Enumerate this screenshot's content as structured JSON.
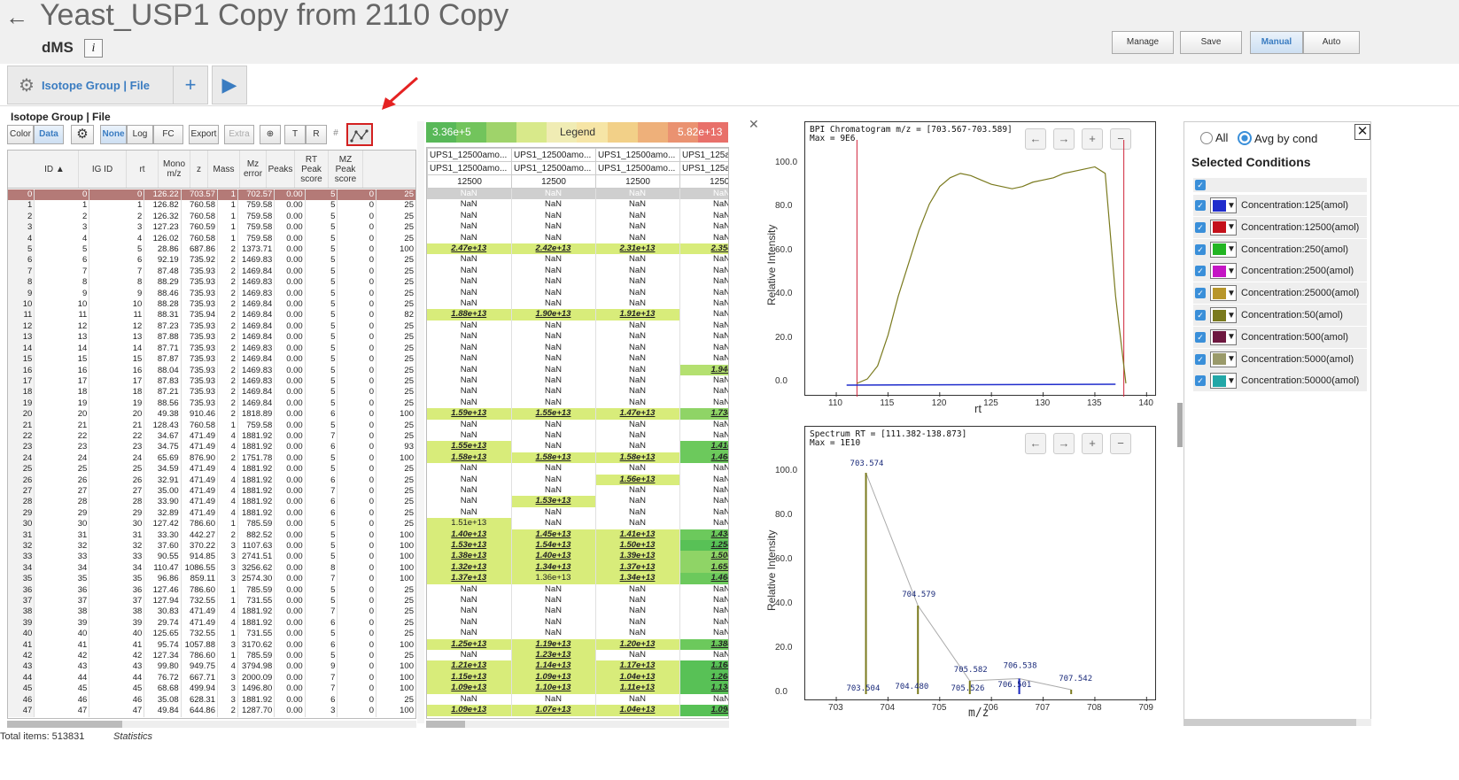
{
  "header": {
    "back_icon": "arrow-left",
    "title": "Yeast_USP1 Copy from 2110 Copy",
    "subtitle": "dMS",
    "info_label": "i",
    "buttons": [
      "Manage",
      "Save",
      "Manual",
      "Auto"
    ]
  },
  "tabs": {
    "active_label": "Isotope Group | File",
    "add_label": "+",
    "run_label": "▶"
  },
  "panel_title": "Isotope Group | File",
  "toolbar": {
    "color": "Color",
    "data": "Data",
    "none": "None",
    "log": "Log",
    "fc": "FC",
    "export": "Export",
    "extra": "Extra",
    "t": "T",
    "r": "R"
  },
  "grid": {
    "headers": [
      "ID",
      "IG ID",
      "rt",
      "Mono m/z",
      "z",
      "Mass",
      "Mz error",
      "Peaks",
      "RT Peak score",
      "MZ Peak score"
    ],
    "rows": [
      [
        "0",
        "0",
        "126.22",
        "703.57",
        "1",
        "702.57",
        "0.00",
        "5",
        "0",
        "25"
      ],
      [
        "1",
        "1",
        "126.82",
        "760.58",
        "1",
        "759.58",
        "0.00",
        "5",
        "0",
        "25"
      ],
      [
        "2",
        "2",
        "126.32",
        "760.58",
        "1",
        "759.58",
        "0.00",
        "5",
        "0",
        "25"
      ],
      [
        "3",
        "3",
        "127.23",
        "760.59",
        "1",
        "759.58",
        "0.00",
        "5",
        "0",
        "25"
      ],
      [
        "4",
        "4",
        "126.02",
        "760.58",
        "1",
        "759.58",
        "0.00",
        "5",
        "0",
        "25"
      ],
      [
        "5",
        "5",
        "28.86",
        "687.86",
        "2",
        "1373.71",
        "0.00",
        "5",
        "0",
        "100"
      ],
      [
        "6",
        "6",
        "92.19",
        "735.92",
        "2",
        "1469.83",
        "0.00",
        "5",
        "0",
        "25"
      ],
      [
        "7",
        "7",
        "87.48",
        "735.93",
        "2",
        "1469.84",
        "0.00",
        "5",
        "0",
        "25"
      ],
      [
        "8",
        "8",
        "88.29",
        "735.93",
        "2",
        "1469.83",
        "0.00",
        "5",
        "0",
        "25"
      ],
      [
        "9",
        "9",
        "88.46",
        "735.93",
        "2",
        "1469.83",
        "0.00",
        "5",
        "0",
        "25"
      ],
      [
        "10",
        "10",
        "88.28",
        "735.93",
        "2",
        "1469.84",
        "0.00",
        "5",
        "0",
        "25"
      ],
      [
        "11",
        "11",
        "88.31",
        "735.94",
        "2",
        "1469.84",
        "0.00",
        "5",
        "0",
        "82"
      ],
      [
        "12",
        "12",
        "87.23",
        "735.93",
        "2",
        "1469.84",
        "0.00",
        "5",
        "0",
        "25"
      ],
      [
        "13",
        "13",
        "87.88",
        "735.93",
        "2",
        "1469.84",
        "0.00",
        "5",
        "0",
        "25"
      ],
      [
        "14",
        "14",
        "87.71",
        "735.93",
        "2",
        "1469.83",
        "0.00",
        "5",
        "0",
        "25"
      ],
      [
        "15",
        "15",
        "87.87",
        "735.93",
        "2",
        "1469.84",
        "0.00",
        "5",
        "0",
        "25"
      ],
      [
        "16",
        "16",
        "88.04",
        "735.93",
        "2",
        "1469.83",
        "0.00",
        "5",
        "0",
        "25"
      ],
      [
        "17",
        "17",
        "87.83",
        "735.93",
        "2",
        "1469.83",
        "0.00",
        "5",
        "0",
        "25"
      ],
      [
        "18",
        "18",
        "87.21",
        "735.93",
        "2",
        "1469.84",
        "0.00",
        "5",
        "0",
        "25"
      ],
      [
        "19",
        "19",
        "88.56",
        "735.93",
        "2",
        "1469.84",
        "0.00",
        "5",
        "0",
        "25"
      ],
      [
        "20",
        "20",
        "49.38",
        "910.46",
        "2",
        "1818.89",
        "0.00",
        "6",
        "0",
        "100"
      ],
      [
        "21",
        "21",
        "128.43",
        "760.58",
        "1",
        "759.58",
        "0.00",
        "5",
        "0",
        "25"
      ],
      [
        "22",
        "22",
        "34.67",
        "471.49",
        "4",
        "1881.92",
        "0.00",
        "7",
        "0",
        "25"
      ],
      [
        "23",
        "23",
        "34.75",
        "471.49",
        "4",
        "1881.92",
        "0.00",
        "6",
        "0",
        "93"
      ],
      [
        "24",
        "24",
        "65.69",
        "876.90",
        "2",
        "1751.78",
        "0.00",
        "5",
        "0",
        "100"
      ],
      [
        "25",
        "25",
        "34.59",
        "471.49",
        "4",
        "1881.92",
        "0.00",
        "5",
        "0",
        "25"
      ],
      [
        "26",
        "26",
        "32.91",
        "471.49",
        "4",
        "1881.92",
        "0.00",
        "6",
        "0",
        "25"
      ],
      [
        "27",
        "27",
        "35.00",
        "471.49",
        "4",
        "1881.92",
        "0.00",
        "7",
        "0",
        "25"
      ],
      [
        "28",
        "28",
        "33.90",
        "471.49",
        "4",
        "1881.92",
        "0.00",
        "6",
        "0",
        "25"
      ],
      [
        "29",
        "29",
        "32.89",
        "471.49",
        "4",
        "1881.92",
        "0.00",
        "6",
        "0",
        "25"
      ],
      [
        "30",
        "30",
        "127.42",
        "786.60",
        "1",
        "785.59",
        "0.00",
        "5",
        "0",
        "25"
      ],
      [
        "31",
        "31",
        "33.30",
        "442.27",
        "2",
        "882.52",
        "0.00",
        "5",
        "0",
        "100"
      ],
      [
        "32",
        "32",
        "37.60",
        "370.22",
        "3",
        "1107.63",
        "0.00",
        "5",
        "0",
        "100"
      ],
      [
        "33",
        "33",
        "90.55",
        "914.85",
        "3",
        "2741.51",
        "0.00",
        "5",
        "0",
        "100"
      ],
      [
        "34",
        "34",
        "110.47",
        "1086.55",
        "3",
        "3256.62",
        "0.00",
        "8",
        "0",
        "100"
      ],
      [
        "35",
        "35",
        "96.86",
        "859.11",
        "3",
        "2574.30",
        "0.00",
        "7",
        "0",
        "100"
      ],
      [
        "36",
        "36",
        "127.46",
        "786.60",
        "1",
        "785.59",
        "0.00",
        "5",
        "0",
        "25"
      ],
      [
        "37",
        "37",
        "127.94",
        "732.55",
        "1",
        "731.55",
        "0.00",
        "5",
        "0",
        "25"
      ],
      [
        "38",
        "38",
        "30.83",
        "471.49",
        "4",
        "1881.92",
        "0.00",
        "7",
        "0",
        "25"
      ],
      [
        "39",
        "39",
        "29.74",
        "471.49",
        "4",
        "1881.92",
        "0.00",
        "6",
        "0",
        "25"
      ],
      [
        "40",
        "40",
        "125.65",
        "732.55",
        "1",
        "731.55",
        "0.00",
        "5",
        "0",
        "25"
      ],
      [
        "41",
        "41",
        "95.74",
        "1057.88",
        "3",
        "3170.62",
        "0.00",
        "6",
        "0",
        "100"
      ],
      [
        "42",
        "42",
        "127.34",
        "786.60",
        "1",
        "785.59",
        "0.00",
        "5",
        "0",
        "25"
      ],
      [
        "43",
        "43",
        "99.80",
        "949.75",
        "4",
        "3794.98",
        "0.00",
        "9",
        "0",
        "100"
      ],
      [
        "44",
        "44",
        "76.72",
        "667.71",
        "3",
        "2000.09",
        "0.00",
        "7",
        "0",
        "100"
      ],
      [
        "45",
        "45",
        "68.68",
        "499.94",
        "3",
        "1496.80",
        "0.00",
        "7",
        "0",
        "100"
      ],
      [
        "46",
        "46",
        "35.08",
        "628.31",
        "3",
        "1881.92",
        "0.00",
        "6",
        "0",
        "25"
      ],
      [
        "47",
        "47",
        "49.84",
        "644.86",
        "2",
        "1287.70",
        "0.00",
        "3",
        "0",
        "100"
      ]
    ]
  },
  "legend": {
    "low": "3.36e+5",
    "mid": "Legend",
    "high": "5.82e+13",
    "colors": [
      "#58b858",
      "#72c45c",
      "#9fd36a",
      "#d8e98a",
      "#f0ecb4",
      "#f6e5a6",
      "#f2d088",
      "#eeb07a",
      "#ea9271",
      "#e8706a"
    ]
  },
  "heat": {
    "col_headers": [
      "UPS1_12500amo...",
      "UPS1_12500amo...",
      "UPS1_12500amo...",
      "UPS1_125a"
    ],
    "col_headers2": [
      "UPS1_12500amo...",
      "UPS1_12500amo...",
      "UPS1_12500amo...",
      "UPS1_125a"
    ],
    "col_nums": [
      "12500",
      "12500",
      "12500",
      "12500"
    ],
    "rows": [
      [
        "NaN",
        "NaN",
        "NaN",
        "NaN"
      ],
      [
        "NaN",
        "NaN",
        "NaN",
        "NaN"
      ],
      [
        "NaN",
        "NaN",
        "NaN",
        "NaN"
      ],
      [
        "NaN",
        "NaN",
        "NaN",
        "NaN"
      ],
      [
        "NaN",
        "NaN",
        "NaN",
        "NaN"
      ],
      [
        "2.47e+13",
        "2.42e+13",
        "2.31e+13",
        "2.35e"
      ],
      [
        "NaN",
        "NaN",
        "NaN",
        "NaN"
      ],
      [
        "NaN",
        "NaN",
        "NaN",
        "NaN"
      ],
      [
        "NaN",
        "NaN",
        "NaN",
        "NaN"
      ],
      [
        "NaN",
        "NaN",
        "NaN",
        "NaN"
      ],
      [
        "NaN",
        "NaN",
        "NaN",
        "NaN"
      ],
      [
        "1.88e+13",
        "1.90e+13",
        "1.91e+13",
        "NaN"
      ],
      [
        "NaN",
        "NaN",
        "NaN",
        "NaN"
      ],
      [
        "NaN",
        "NaN",
        "NaN",
        "NaN"
      ],
      [
        "NaN",
        "NaN",
        "NaN",
        "NaN"
      ],
      [
        "NaN",
        "NaN",
        "NaN",
        "NaN"
      ],
      [
        "NaN",
        "NaN",
        "NaN",
        "1.94e"
      ],
      [
        "NaN",
        "NaN",
        "NaN",
        "NaN"
      ],
      [
        "NaN",
        "NaN",
        "NaN",
        "NaN"
      ],
      [
        "NaN",
        "NaN",
        "NaN",
        "NaN"
      ],
      [
        "1.59e+13",
        "1.55e+13",
        "1.47e+13",
        "1.73e"
      ],
      [
        "NaN",
        "NaN",
        "NaN",
        "NaN"
      ],
      [
        "NaN",
        "NaN",
        "NaN",
        "NaN"
      ],
      [
        "1.55e+13",
        "NaN",
        "NaN",
        "1.41e"
      ],
      [
        "1.58e+13",
        "1.58e+13",
        "1.58e+13",
        "1.46e"
      ],
      [
        "NaN",
        "NaN",
        "NaN",
        "NaN"
      ],
      [
        "NaN",
        "NaN",
        "1.56e+13",
        "NaN"
      ],
      [
        "NaN",
        "NaN",
        "NaN",
        "NaN"
      ],
      [
        "NaN",
        "1.53e+13",
        "NaN",
        "NaN"
      ],
      [
        "NaN",
        "NaN",
        "NaN",
        "NaN"
      ],
      [
        "1.51e+13",
        "NaN",
        "NaN",
        "NaN"
      ],
      [
        "1.40e+13",
        "1.45e+13",
        "1.41e+13",
        "1.43e"
      ],
      [
        "1.53e+13",
        "1.54e+13",
        "1.50e+13",
        "1.25e"
      ],
      [
        "1.38e+13",
        "1.40e+13",
        "1.39e+13",
        "1.50e"
      ],
      [
        "1.32e+13",
        "1.34e+13",
        "1.37e+13",
        "1.65e"
      ],
      [
        "1.37e+13",
        "1.36e+13",
        "1.34e+13",
        "1.46e"
      ],
      [
        "NaN",
        "NaN",
        "NaN",
        "NaN"
      ],
      [
        "NaN",
        "NaN",
        "NaN",
        "NaN"
      ],
      [
        "NaN",
        "NaN",
        "NaN",
        "NaN"
      ],
      [
        "NaN",
        "NaN",
        "NaN",
        "NaN"
      ],
      [
        "NaN",
        "NaN",
        "NaN",
        "NaN"
      ],
      [
        "1.25e+13",
        "1.19e+13",
        "1.20e+13",
        "1.38e"
      ],
      [
        "NaN",
        "1.23e+13",
        "NaN",
        "NaN"
      ],
      [
        "1.21e+13",
        "1.14e+13",
        "1.17e+13",
        "1.16e"
      ],
      [
        "1.15e+13",
        "1.09e+13",
        "1.04e+13",
        "1.26e"
      ],
      [
        "1.09e+13",
        "1.10e+13",
        "1.11e+13",
        "1.13e"
      ],
      [
        "NaN",
        "NaN",
        "NaN",
        "NaN"
      ],
      [
        "1.09e+13",
        "1.07e+13",
        "1.04e+13",
        "1.09e"
      ]
    ]
  },
  "footer": {
    "total": "Total items: 513831",
    "stats": "Statistics"
  },
  "chrom": {
    "title1": "BPI Chromatogram m/z = [703.567-703.589]",
    "title2": "Max = 9E6",
    "ylabel": "Relative Intensity",
    "xlabel": "rt",
    "yticks": [
      "100.0",
      "80.0",
      "60.0",
      "40.0",
      "20.0",
      "0.0"
    ],
    "xticks": [
      "110",
      "115",
      "120",
      "125",
      "130",
      "135",
      "140"
    ]
  },
  "spec": {
    "title1": "Spectrum RT = [111.382-138.873]",
    "title2": "Max = 1E10",
    "ylabel": "Relative Intensity",
    "xlabel": "m/z",
    "yticks": [
      "100.0",
      "80.0",
      "60.0",
      "40.0",
      "20.0",
      "0.0"
    ],
    "xticks": [
      "703",
      "704",
      "705",
      "706",
      "707",
      "708",
      "709"
    ],
    "peak_labels": [
      "703.574",
      "704.579",
      "705.582",
      "706.538",
      "707.542",
      "703.504",
      "704.480",
      "705.526",
      "706.501"
    ]
  },
  "chart_data": [
    {
      "type": "line",
      "title": "BPI Chromatogram m/z = [703.567-703.589]",
      "xlabel": "rt",
      "ylabel": "Relative Intensity",
      "xlim": [
        107,
        141
      ],
      "ylim": [
        0,
        100
      ],
      "series": [
        {
          "x": [
            112,
            113,
            114,
            115,
            116,
            117,
            118,
            119,
            120,
            121,
            122,
            123,
            124,
            125,
            126,
            127,
            128,
            129,
            130,
            131,
            132,
            133,
            134,
            135,
            136,
            137,
            138
          ],
          "values": [
            0,
            2,
            8,
            22,
            40,
            55,
            70,
            82,
            90,
            94,
            96,
            95,
            93,
            91,
            90,
            89,
            90,
            92,
            93,
            94,
            96,
            97,
            98,
            99,
            96,
            40,
            0
          ]
        }
      ]
    },
    {
      "type": "bar",
      "title": "Spectrum RT = [111.382-138.873]",
      "xlabel": "m/z",
      "ylabel": "Relative Intensity",
      "xlim": [
        702.4,
        709.2
      ],
      "ylim": [
        0,
        100
      ],
      "series": [
        {
          "x": [
            703.574,
            704.579,
            705.582,
            706.538,
            707.542
          ],
          "values": [
            100,
            40,
            6,
            7,
            2
          ]
        }
      ]
    }
  ],
  "conditions": {
    "all_label": "All",
    "avg_label": "Avg by cond",
    "heading": "Selected Conditions",
    "items": [
      {
        "label": "Concentration:125(amol)",
        "color": "#1f2ccc"
      },
      {
        "label": "Concentration:12500(amol)",
        "color": "#c4101a"
      },
      {
        "label": "Concentration:250(amol)",
        "color": "#22b522"
      },
      {
        "label": "Concentration:2500(amol)",
        "color": "#c415c4"
      },
      {
        "label": "Concentration:25000(amol)",
        "color": "#b8962a"
      },
      {
        "label": "Concentration:50(amol)",
        "color": "#7a7a1e"
      },
      {
        "label": "Concentration:500(amol)",
        "color": "#6e1840"
      },
      {
        "label": "Concentration:5000(amol)",
        "color": "#9a9a6a"
      },
      {
        "label": "Concentration:50000(amol)",
        "color": "#22a7a7"
      }
    ]
  }
}
